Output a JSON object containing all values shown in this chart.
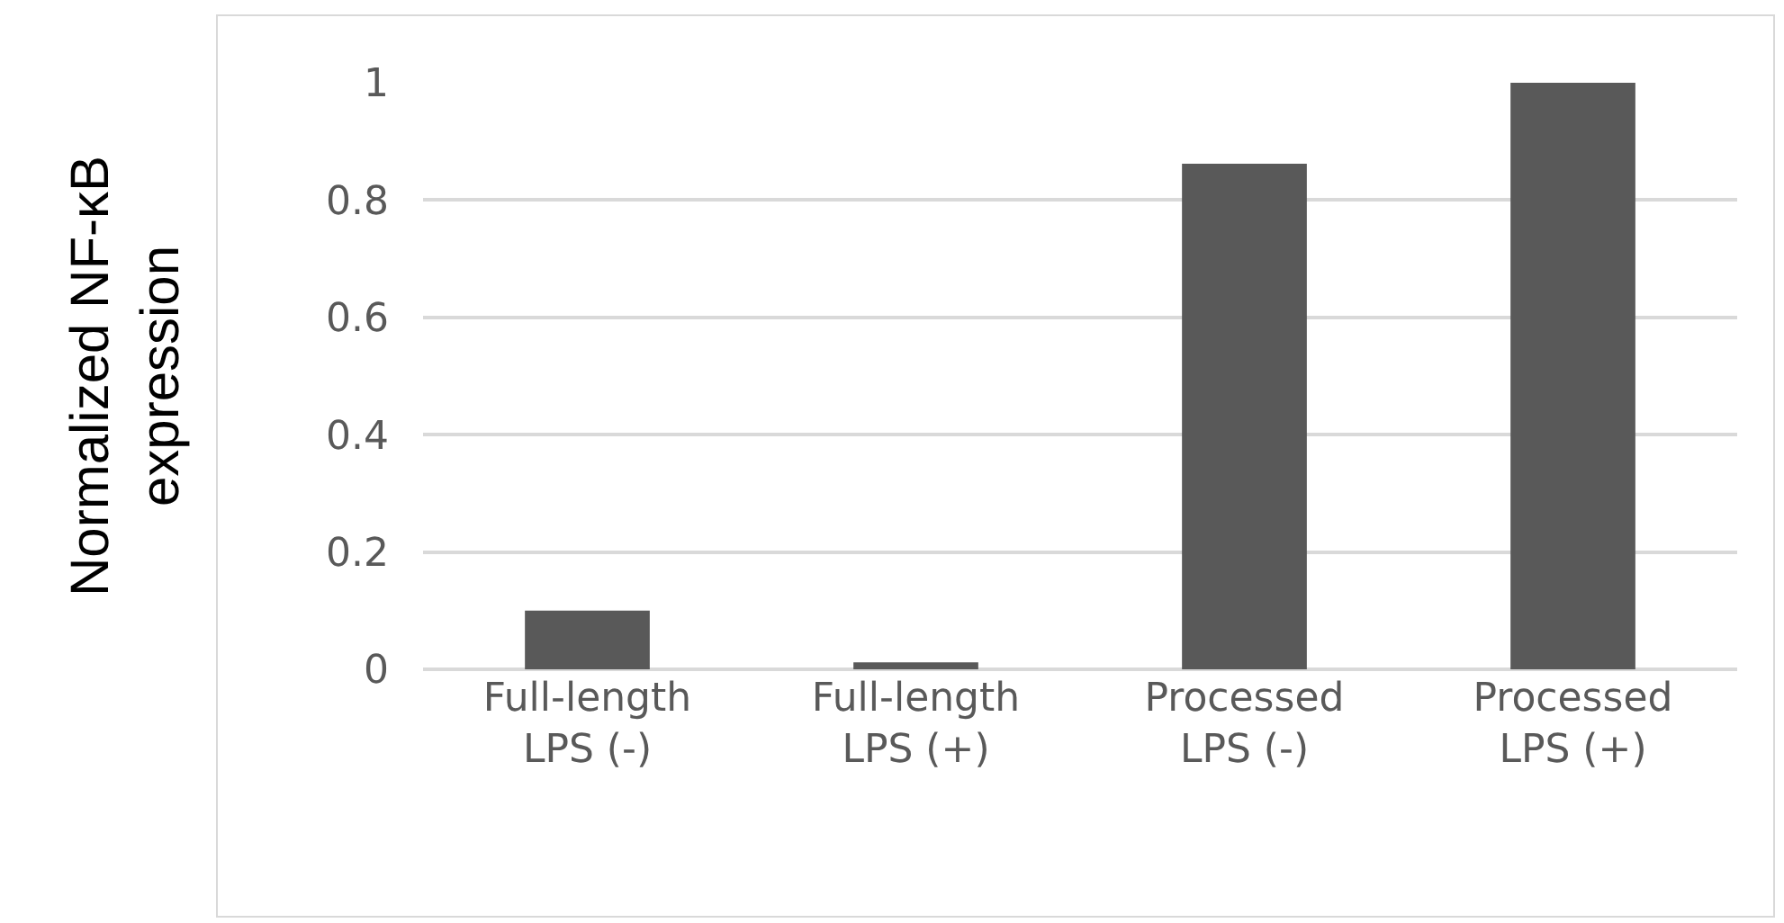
{
  "chart_data": {
    "type": "bar",
    "ylabel": "Normalized NF-κB expression",
    "categories": [
      "Full-length LPS (-)",
      "Full-length LPS (+)",
      "Processed LPS (-)",
      "Processed LPS (+)"
    ],
    "values": [
      0.1,
      0.012,
      0.862,
      1.0
    ],
    "color": "#595959",
    "ylim": [
      0,
      1
    ],
    "yticks": [
      0,
      0.2,
      0.4,
      0.6,
      0.8,
      1
    ],
    "grid": "y"
  }
}
